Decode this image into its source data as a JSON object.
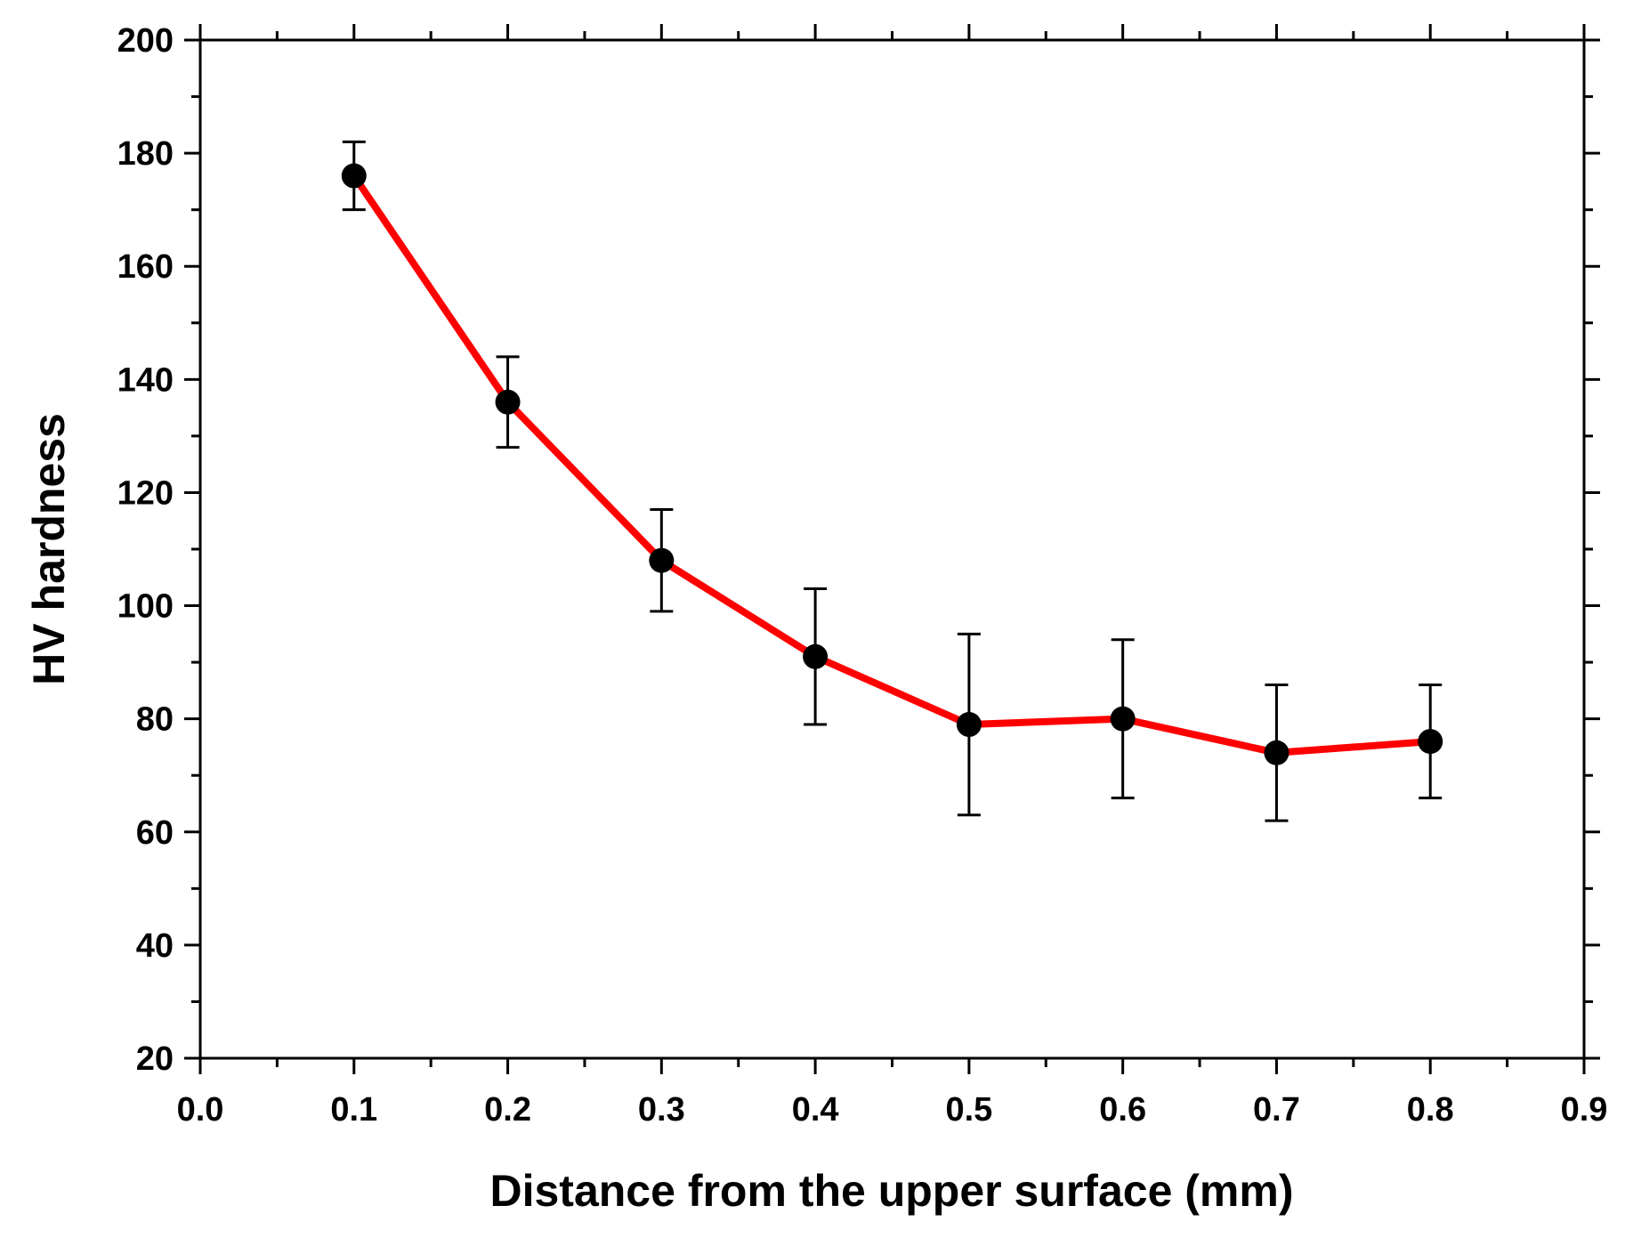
{
  "chart_data": {
    "type": "line",
    "title": "",
    "xlabel": "Distance from the upper surface (mm)",
    "ylabel": "HV hardness",
    "xlim": [
      0.0,
      0.9
    ],
    "ylim": [
      20,
      200
    ],
    "x_ticks": [
      "0.0",
      "0.1",
      "0.2",
      "0.3",
      "0.4",
      "0.5",
      "0.6",
      "0.7",
      "0.8",
      "0.9"
    ],
    "y_ticks": [
      "20",
      "40",
      "60",
      "80",
      "100",
      "120",
      "140",
      "160",
      "180",
      "200"
    ],
    "grid": false,
    "legend": "none",
    "series": [
      {
        "name": "HV hardness",
        "line_color": "#ff0000",
        "marker_color": "#000000",
        "x": [
          0.1,
          0.2,
          0.3,
          0.4,
          0.5,
          0.6,
          0.7,
          0.8
        ],
        "y": [
          176,
          136,
          108,
          91,
          79,
          80,
          74,
          76
        ],
        "error_low": [
          170,
          128,
          99,
          79,
          63,
          66,
          62,
          66
        ],
        "error_high": [
          182,
          144,
          117,
          103,
          95,
          94,
          86,
          86
        ]
      }
    ]
  }
}
